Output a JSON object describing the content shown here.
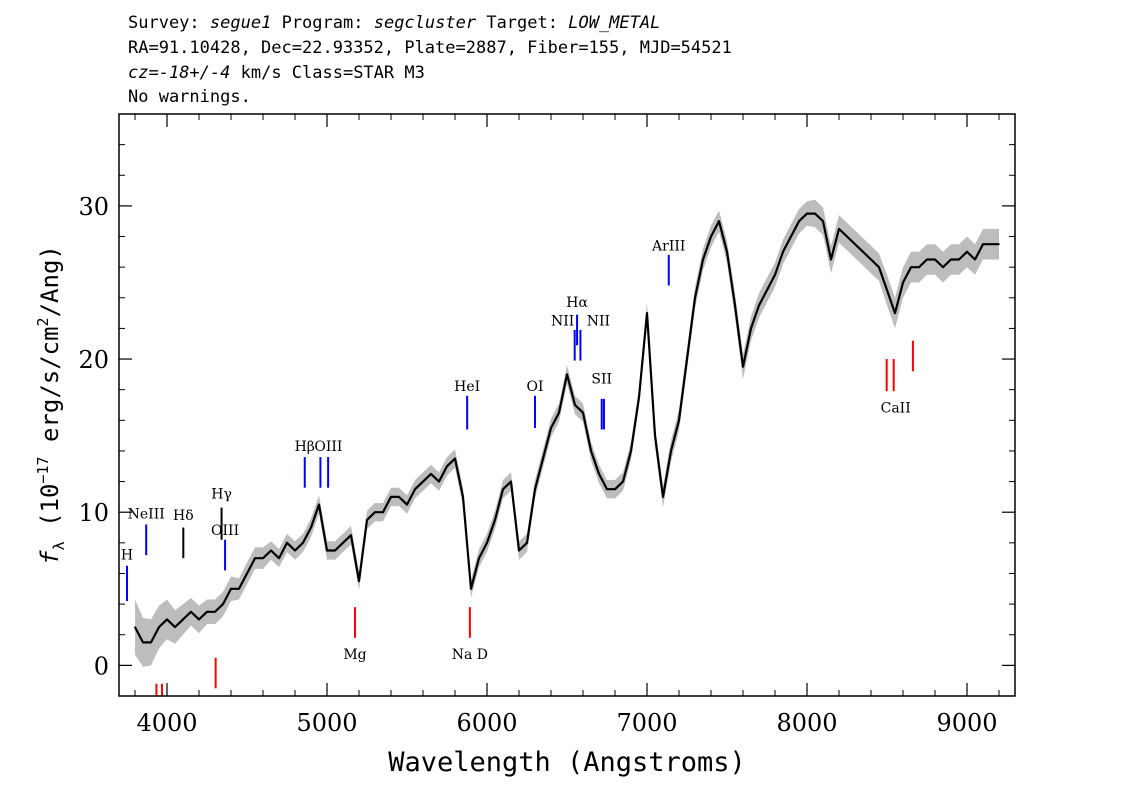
{
  "header": {
    "survey_label": "Survey:",
    "survey": "segue1",
    "program_label": "Program:",
    "program": "segcluster",
    "target_label": "Target:",
    "target": "LOW_METAL",
    "line2": "RA=91.10428, Dec=22.93352, Plate=2887, Fiber=155, MJD=54521",
    "cz_label": "cz=",
    "cz": "-18+/-4",
    "cz_rest": " km/s Class=STAR M3",
    "line4": "No warnings."
  },
  "chart_data": {
    "type": "line",
    "xlabel": "Wavelength (Angstroms)",
    "ylabel": "f_λ (10^-17 erg/s/cm^2/Ang)",
    "ylabel_parts": {
      "f": "f",
      "sub": "λ",
      "a": " (10",
      "exp1": "−17",
      "b": " erg/s/cm",
      "exp2": "2",
      "c": "/Ang)"
    },
    "xlim": [
      3700,
      9300
    ],
    "ylim": [
      -2,
      36
    ],
    "xticks": [
      4000,
      5000,
      6000,
      7000,
      8000,
      9000
    ],
    "yticks": [
      0,
      10,
      20,
      30
    ],
    "xtick_labels": [
      "4000",
      "5000",
      "6000",
      "7000",
      "8000",
      "9000"
    ],
    "ytick_labels": [
      "0",
      "10",
      "20",
      "30"
    ],
    "series": [
      {
        "color": "#000000",
        "error_color": "#bdbdbd",
        "x": [
          3800,
          3850,
          3900,
          3950,
          4000,
          4050,
          4100,
          4150,
          4200,
          4250,
          4300,
          4350,
          4400,
          4450,
          4500,
          4550,
          4600,
          4650,
          4700,
          4750,
          4800,
          4850,
          4900,
          4950,
          5000,
          5050,
          5100,
          5150,
          5200,
          5250,
          5300,
          5350,
          5400,
          5450,
          5500,
          5550,
          5600,
          5650,
          5700,
          5750,
          5800,
          5850,
          5900,
          5950,
          6000,
          6050,
          6100,
          6150,
          6200,
          6250,
          6300,
          6350,
          6400,
          6450,
          6500,
          6550,
          6600,
          6650,
          6700,
          6750,
          6800,
          6850,
          6900,
          6950,
          7000,
          7050,
          7100,
          7150,
          7200,
          7250,
          7300,
          7350,
          7400,
          7450,
          7500,
          7550,
          7600,
          7650,
          7700,
          7750,
          7800,
          7850,
          7900,
          7950,
          8000,
          8050,
          8100,
          8150,
          8200,
          8250,
          8300,
          8350,
          8400,
          8450,
          8500,
          8550,
          8600,
          8650,
          8700,
          8750,
          8800,
          8850,
          8900,
          8950,
          9000,
          9050,
          9100,
          9150,
          9200
        ],
        "y": [
          2.5,
          1.5,
          1.5,
          2.5,
          3.0,
          2.5,
          3.0,
          3.5,
          3.0,
          3.5,
          3.5,
          4.0,
          5.0,
          5.0,
          6.0,
          7.0,
          7.0,
          7.5,
          7.0,
          8.0,
          7.5,
          8.0,
          9.0,
          10.5,
          7.5,
          7.5,
          8.0,
          8.5,
          5.5,
          9.5,
          10.0,
          10.0,
          11.0,
          11.0,
          10.5,
          11.5,
          12.0,
          12.5,
          12.0,
          13.0,
          13.5,
          11.0,
          5.0,
          7.0,
          8.0,
          9.5,
          11.5,
          12.0,
          7.5,
          8.0,
          11.5,
          13.5,
          15.5,
          16.5,
          19.0,
          17.0,
          16.5,
          14.0,
          12.5,
          11.5,
          11.5,
          12.0,
          14.0,
          17.5,
          23.0,
          15.0,
          11.0,
          14.0,
          16.0,
          20.0,
          24.0,
          26.5,
          28.0,
          29.0,
          27.0,
          23.5,
          19.5,
          22.0,
          23.5,
          24.5,
          25.5,
          27.0,
          28.0,
          29.0,
          29.5,
          29.5,
          29.0,
          26.5,
          28.5,
          28.0,
          27.5,
          27.0,
          26.5,
          26.0,
          24.5,
          23.0,
          25.0,
          26.0,
          26.0,
          26.5,
          26.5,
          26.0,
          26.5,
          26.5,
          27.0,
          26.5,
          27.5,
          27.5,
          27.5
        ],
        "err": [
          1.8,
          1.6,
          1.5,
          1.4,
          1.3,
          1.1,
          1.0,
          0.9,
          0.9,
          0.8,
          0.8,
          0.8,
          0.8,
          0.7,
          0.7,
          0.7,
          0.7,
          0.6,
          0.6,
          0.6,
          0.6,
          0.6,
          0.6,
          0.6,
          0.6,
          0.6,
          0.6,
          0.6,
          0.6,
          0.6,
          0.6,
          0.6,
          0.6,
          0.6,
          0.6,
          0.6,
          0.6,
          0.6,
          0.6,
          0.6,
          0.6,
          0.6,
          0.6,
          0.6,
          0.6,
          0.6,
          0.6,
          0.6,
          0.6,
          0.6,
          0.6,
          0.6,
          0.6,
          0.6,
          0.6,
          0.6,
          0.6,
          0.6,
          0.6,
          0.6,
          0.6,
          0.6,
          0.6,
          0.6,
          0.7,
          0.7,
          0.7,
          0.7,
          0.7,
          0.7,
          0.7,
          0.7,
          0.7,
          0.7,
          0.7,
          0.8,
          0.8,
          0.8,
          0.8,
          0.8,
          0.8,
          0.8,
          0.8,
          0.8,
          0.8,
          0.9,
          0.9,
          0.9,
          0.9,
          0.9,
          0.9,
          0.9,
          0.9,
          0.9,
          1.0,
          1.0,
          1.0,
          1.0,
          1.0,
          1.0,
          1.0,
          1.0,
          1.0,
          1.0,
          1.0,
          1.0,
          1.0,
          1.0,
          1.0
        ]
      }
    ],
    "lines": [
      {
        "label": "H",
        "x": 3750,
        "y0": 4.2,
        "y1": 6.5,
        "color": "#0000ff",
        "ly": 6.9
      },
      {
        "label": "NeIII",
        "x": 3870,
        "y0": 7.2,
        "y1": 9.2,
        "color": "#0000ff",
        "ly": 9.6
      },
      {
        "label": "Hδ",
        "x": 4102,
        "y0": 7.0,
        "y1": 9.0,
        "color": "#000000",
        "ly": 9.5
      },
      {
        "label": "Hγ",
        "x": 4341,
        "y0": 8.2,
        "y1": 10.3,
        "color": "#000000",
        "ly": 10.9
      },
      {
        "label": "OIII",
        "x": 4363,
        "y0": 6.2,
        "y1": 8.2,
        "color": "#0000ff",
        "ly": 8.5
      },
      {
        "label": "Hβ",
        "x": 4861,
        "y0": 11.6,
        "y1": 13.6,
        "color": "#0000ff",
        "ly": 14.0
      },
      {
        "label": "OIII",
        "x": 4959,
        "y0": 11.6,
        "y1": 13.6,
        "color": "#0000ff",
        "ly": 14.0,
        "ldx": 8
      },
      {
        "label": "OIII",
        "x": 5007,
        "y0": 11.6,
        "y1": 13.6,
        "color": "#0000ff",
        "ly": null
      },
      {
        "label": "HeI",
        "x": 5876,
        "y0": 15.4,
        "y1": 17.6,
        "color": "#0000ff",
        "ly": 17.9
      },
      {
        "label": "OI",
        "x": 6300,
        "y0": 15.5,
        "y1": 17.6,
        "color": "#0000ff",
        "ly": 17.9
      },
      {
        "label": "NII",
        "x": 6548,
        "y0": 19.9,
        "y1": 21.9,
        "color": "#0000ff",
        "ly": 22.2,
        "ldx": -12
      },
      {
        "label": "Hα",
        "x": 6563,
        "y0": 20.9,
        "y1": 22.9,
        "color": "#0000ff",
        "ly": 23.4
      },
      {
        "label": "NII",
        "x": 6584,
        "y0": 19.9,
        "y1": 21.9,
        "color": "#0000ff",
        "ly": 22.2,
        "ldx": 18
      },
      {
        "label": "SII",
        "x": 6717,
        "y0": 15.4,
        "y1": 17.4,
        "color": "#0000ff",
        "ly": 18.4
      },
      {
        "label": "SII",
        "x": 6731,
        "y0": 15.4,
        "y1": 17.4,
        "color": "#0000ff",
        "ly": null
      },
      {
        "label": "ArIII",
        "x": 7136,
        "y0": 24.8,
        "y1": 26.8,
        "color": "#0000ff",
        "ly": 27.1
      },
      {
        "label": "Mg",
        "x": 5175,
        "y0": 1.8,
        "y1": 3.8,
        "color": "#ff0000",
        "ly": 0.4
      },
      {
        "label": "Na D",
        "x": 5893,
        "y0": 1.8,
        "y1": 3.8,
        "color": "#ff0000",
        "ly": 0.4
      },
      {
        "label": "CaII",
        "x": 8498,
        "y0": 17.9,
        "y1": 20.0,
        "color": "#ff0000",
        "ly": 16.5,
        "ldx": 9
      },
      {
        "label": "CaII",
        "x": 8542,
        "y0": 17.9,
        "y1": 20.0,
        "color": "#ff0000",
        "ly": null
      },
      {
        "label": "CaII",
        "x": 8662,
        "y0": 19.2,
        "y1": 21.2,
        "color": "#ff0000",
        "ly": null
      },
      {
        "label": "",
        "x": 3934,
        "y0": -2.0,
        "y1": -1.2,
        "color": "#ff0000",
        "ly": null
      },
      {
        "label": "",
        "x": 3969,
        "y0": -2.0,
        "y1": -1.2,
        "color": "#ff0000",
        "ly": null
      },
      {
        "label": "",
        "x": 4304,
        "y0": -1.5,
        "y1": 0.5,
        "color": "#ff0000",
        "ly": null
      }
    ]
  }
}
